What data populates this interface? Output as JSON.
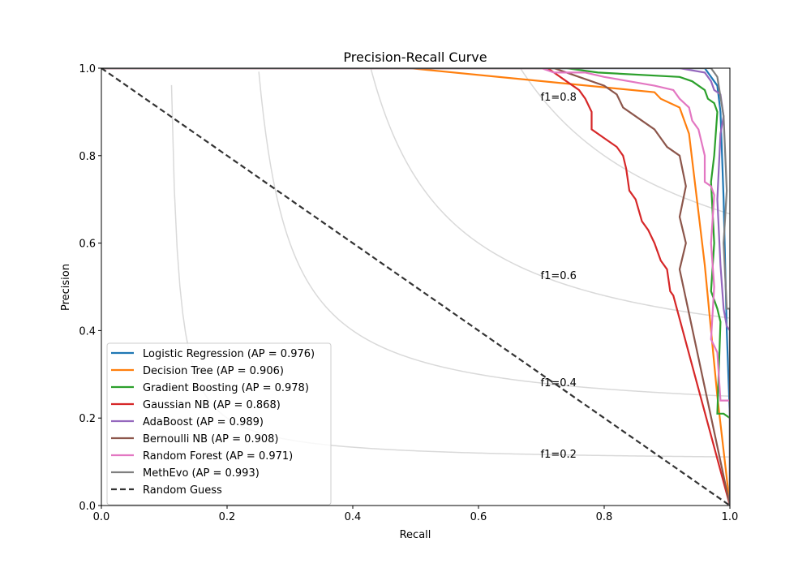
{
  "chart_data": {
    "type": "line",
    "title": "Precision-Recall Curve",
    "xlabel": "Recall",
    "ylabel": "Precision",
    "xlim": [
      0,
      1
    ],
    "ylim": [
      0,
      1
    ],
    "xticks": [
      "0.0",
      "0.2",
      "0.4",
      "0.6",
      "0.8",
      "1.0"
    ],
    "yticks": [
      "0.0",
      "0.2",
      "0.4",
      "0.6",
      "0.8",
      "1.0"
    ],
    "grid": false,
    "legend_position": "lower-left",
    "iso_f1": [
      {
        "f1": 0.2,
        "label": "f1=0.2",
        "label_x": 0.7
      },
      {
        "f1": 0.4,
        "label": "f1=0.4",
        "label_x": 0.7
      },
      {
        "f1": 0.6,
        "label": "f1=0.6",
        "label_x": 0.7
      },
      {
        "f1": 0.8,
        "label": "f1=0.8",
        "label_x": 0.7
      }
    ],
    "series": [
      {
        "name": "Logistic Regression (AP = 0.976)",
        "color": "#1f77b4",
        "style": "solid",
        "points": [
          [
            0.0,
            1.0
          ],
          [
            0.96,
            1.0
          ],
          [
            0.965,
            0.99
          ],
          [
            0.97,
            0.98
          ],
          [
            0.975,
            0.97
          ],
          [
            0.98,
            0.96
          ],
          [
            0.985,
            0.9
          ],
          [
            0.99,
            0.7
          ],
          [
            0.995,
            0.4
          ],
          [
            1.0,
            0.2
          ],
          [
            1.0,
            0.0
          ]
        ]
      },
      {
        "name": "Decision Tree (AP = 0.906)",
        "color": "#ff7f0e",
        "style": "solid",
        "points": [
          [
            0.0,
            1.0
          ],
          [
            0.49,
            1.0
          ],
          [
            0.88,
            0.945
          ],
          [
            0.89,
            0.93
          ],
          [
            0.92,
            0.91
          ],
          [
            0.935,
            0.85
          ],
          [
            0.96,
            0.55
          ],
          [
            0.97,
            0.4
          ],
          [
            0.98,
            0.25
          ],
          [
            1.0,
            0.0
          ]
        ]
      },
      {
        "name": "Gradient Boosting (AP = 0.978)",
        "color": "#2ca02c",
        "style": "solid",
        "points": [
          [
            0.0,
            1.0
          ],
          [
            0.74,
            1.0
          ],
          [
            0.79,
            0.99
          ],
          [
            0.92,
            0.98
          ],
          [
            0.94,
            0.97
          ],
          [
            0.95,
            0.96
          ],
          [
            0.96,
            0.95
          ],
          [
            0.965,
            0.93
          ],
          [
            0.975,
            0.92
          ],
          [
            0.98,
            0.9
          ],
          [
            0.975,
            0.8
          ],
          [
            0.97,
            0.74
          ],
          [
            0.975,
            0.6
          ],
          [
            0.97,
            0.49
          ],
          [
            0.98,
            0.45
          ],
          [
            0.985,
            0.42
          ],
          [
            0.98,
            0.21
          ],
          [
            0.99,
            0.21
          ],
          [
            1.0,
            0.2
          ],
          [
            1.0,
            0.0
          ]
        ]
      },
      {
        "name": "Gaussian NB (AP = 0.868)",
        "color": "#d62728",
        "style": "solid",
        "points": [
          [
            0.0,
            1.0
          ],
          [
            0.71,
            1.0
          ],
          [
            0.72,
            0.99
          ],
          [
            0.74,
            0.97
          ],
          [
            0.76,
            0.95
          ],
          [
            0.77,
            0.93
          ],
          [
            0.78,
            0.9
          ],
          [
            0.78,
            0.86
          ],
          [
            0.8,
            0.84
          ],
          [
            0.82,
            0.82
          ],
          [
            0.83,
            0.8
          ],
          [
            0.835,
            0.77
          ],
          [
            0.84,
            0.72
          ],
          [
            0.85,
            0.7
          ],
          [
            0.86,
            0.65
          ],
          [
            0.87,
            0.63
          ],
          [
            0.88,
            0.6
          ],
          [
            0.89,
            0.56
          ],
          [
            0.9,
            0.54
          ],
          [
            0.905,
            0.49
          ],
          [
            0.91,
            0.48
          ],
          [
            1.0,
            0.0
          ]
        ]
      },
      {
        "name": "AdaBoost (AP = 0.989)",
        "color": "#9467bd",
        "style": "solid",
        "points": [
          [
            0.0,
            1.0
          ],
          [
            0.92,
            1.0
          ],
          [
            0.96,
            0.99
          ],
          [
            0.97,
            0.97
          ],
          [
            0.975,
            0.95
          ],
          [
            0.985,
            0.94
          ],
          [
            0.99,
            0.89
          ],
          [
            0.985,
            0.85
          ],
          [
            0.98,
            0.7
          ],
          [
            0.985,
            0.55
          ],
          [
            0.99,
            0.45
          ],
          [
            0.995,
            0.41
          ],
          [
            1.0,
            0.4
          ],
          [
            1.0,
            0.0
          ]
        ]
      },
      {
        "name": "Bernoulli NB (AP = 0.908)",
        "color": "#8c564b",
        "style": "solid",
        "points": [
          [
            0.0,
            1.0
          ],
          [
            0.72,
            1.0
          ],
          [
            0.76,
            0.98
          ],
          [
            0.8,
            0.96
          ],
          [
            0.82,
            0.94
          ],
          [
            0.83,
            0.91
          ],
          [
            0.86,
            0.88
          ],
          [
            0.88,
            0.86
          ],
          [
            0.89,
            0.84
          ],
          [
            0.9,
            0.82
          ],
          [
            0.92,
            0.8
          ],
          [
            0.93,
            0.73
          ],
          [
            0.92,
            0.66
          ],
          [
            0.93,
            0.6
          ],
          [
            0.92,
            0.54
          ],
          [
            1.0,
            0.0
          ]
        ]
      },
      {
        "name": "Random Forest (AP = 0.971)",
        "color": "#e377c2",
        "style": "solid",
        "points": [
          [
            0.0,
            1.0
          ],
          [
            0.7,
            1.0
          ],
          [
            0.72,
            0.99
          ],
          [
            0.77,
            0.99
          ],
          [
            0.8,
            0.98
          ],
          [
            0.84,
            0.97
          ],
          [
            0.88,
            0.96
          ],
          [
            0.91,
            0.95
          ],
          [
            0.92,
            0.93
          ],
          [
            0.935,
            0.91
          ],
          [
            0.94,
            0.88
          ],
          [
            0.95,
            0.86
          ],
          [
            0.96,
            0.8
          ],
          [
            0.96,
            0.74
          ],
          [
            0.97,
            0.73
          ],
          [
            0.975,
            0.71
          ],
          [
            0.97,
            0.6
          ],
          [
            0.975,
            0.5
          ],
          [
            0.97,
            0.38
          ],
          [
            0.98,
            0.35
          ],
          [
            0.985,
            0.24
          ],
          [
            1.0,
            0.24
          ],
          [
            1.0,
            0.0
          ]
        ]
      },
      {
        "name": "MethEvo (AP = 0.993)",
        "color": "#7f7f7f",
        "style": "solid",
        "points": [
          [
            0.0,
            1.0
          ],
          [
            0.93,
            1.0
          ],
          [
            0.97,
            1.0
          ],
          [
            0.98,
            0.98
          ],
          [
            0.99,
            0.89
          ],
          [
            0.995,
            0.72
          ],
          [
            0.99,
            0.6
          ],
          [
            0.995,
            0.45
          ],
          [
            1.0,
            0.45
          ],
          [
            1.0,
            0.0
          ]
        ]
      },
      {
        "name": "Random Guess",
        "color": "#333333",
        "style": "dashed",
        "points": [
          [
            0.0,
            1.0
          ],
          [
            1.0,
            0.0
          ]
        ]
      }
    ]
  }
}
